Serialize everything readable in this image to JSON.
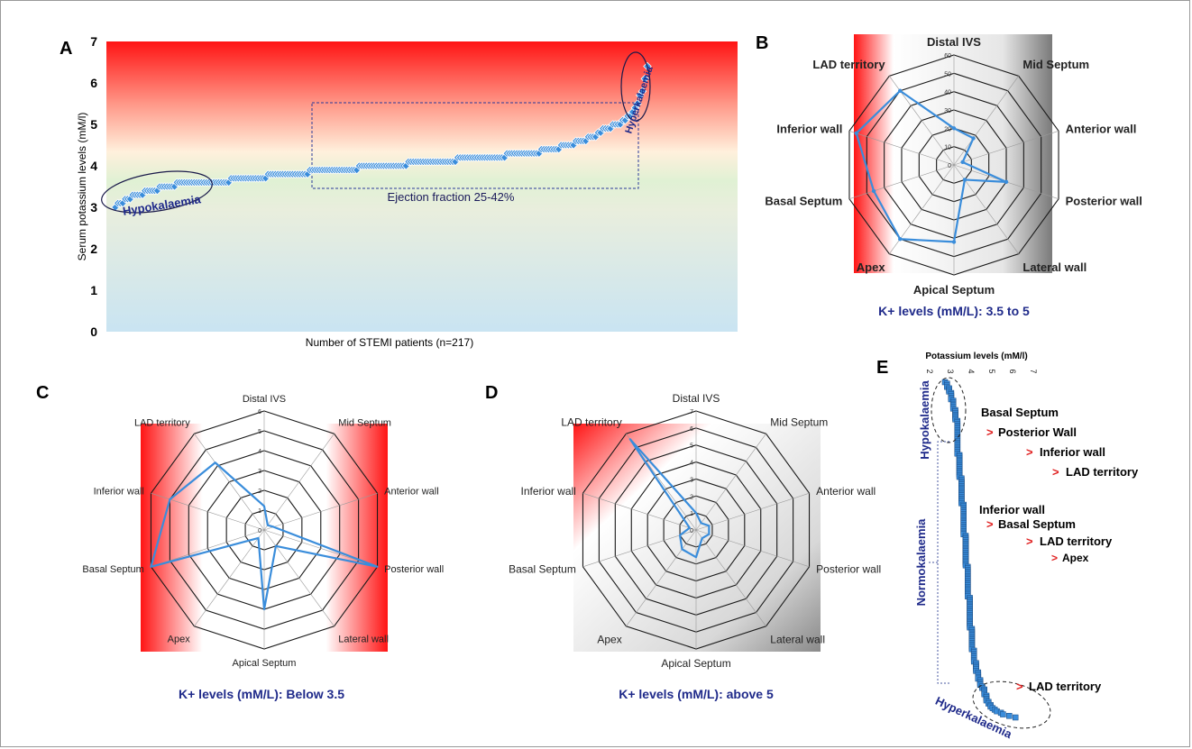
{
  "panels": {
    "A": "A",
    "B": "B",
    "C": "C",
    "D": "D",
    "E": "E"
  },
  "colors": {
    "series": "#3a8ddb",
    "caption": "#1f2a8a",
    "arrow": "#e02020",
    "hot": "#ff1a1a"
  },
  "chart_data": [
    {
      "id": "A",
      "type": "scatter",
      "ylabel": "Serum potassium  levels (mM/l)",
      "xlabel": "Number of STEMI patients (n=217)",
      "ylim": [
        0,
        7
      ],
      "yticks": [
        "0",
        "1",
        "2",
        "3",
        "4",
        "5",
        "6",
        "7"
      ],
      "n": 217,
      "sorted_profile": {
        "x": [
          1,
          3,
          6,
          10,
          15,
          22,
          30,
          40,
          55,
          70,
          90,
          110,
          130,
          150,
          170,
          185,
          195,
          200,
          205,
          208,
          211,
          213,
          215,
          217
        ],
        "y": [
          3.0,
          3.1,
          3.2,
          3.3,
          3.4,
          3.5,
          3.6,
          3.6,
          3.7,
          3.8,
          3.9,
          4.0,
          4.1,
          4.2,
          4.3,
          4.5,
          4.7,
          4.9,
          5.0,
          5.1,
          5.3,
          5.5,
          5.8,
          6.4
        ]
      },
      "annotations": {
        "hypo": "Hypokalaemia",
        "hyper": "Hyperkalaemia",
        "ef": "Ejection fraction 25-42%"
      }
    },
    {
      "id": "B",
      "type": "radar",
      "axes": [
        "Distal IVS",
        "Mid Septum",
        "Anterior wall",
        "Posterior wall",
        "Lateral wall",
        "Apical Septum",
        "Apex",
        "Basal Septum",
        "Inferior wall",
        "LAD territory"
      ],
      "rmax": 60,
      "ring_labels": [
        "0",
        "10",
        "20",
        "30",
        "40",
        "50",
        "60"
      ],
      "values": [
        20,
        18,
        5,
        30,
        10,
        42,
        50,
        46,
        56,
        50
      ],
      "caption": "K+ levels (mM/L): 3.5 to 5"
    },
    {
      "id": "C",
      "type": "radar",
      "axes": [
        "Distal IVS",
        "Mid Septum",
        "Anterior wall",
        "Posterior wall",
        "Lateral wall",
        "Apical Septum",
        "Apex",
        "Basal Septum",
        "Inferior wall",
        "LAD territory"
      ],
      "rmax": 6,
      "ring_labels": [
        "0",
        "1",
        "2",
        "3",
        "4",
        "5",
        "6"
      ],
      "values": [
        1.2,
        0.3,
        0.5,
        6.0,
        1.0,
        4.0,
        0.5,
        6.0,
        5.0,
        4.2
      ],
      "caption": "K+ levels (mM/L): Below 3.5"
    },
    {
      "id": "D",
      "type": "radar",
      "axes": [
        "Distal IVS",
        "Mid Septum",
        "Anterior wall",
        "Posterior wall",
        "Lateral wall",
        "Apical Septum",
        "Apex",
        "Basal Septum",
        "Inferior wall",
        "LAD territory"
      ],
      "rmax": 7,
      "ring_labels": [
        "0",
        "1",
        "2",
        "3",
        "4",
        "5",
        "6",
        "7"
      ],
      "values": [
        1.0,
        0.5,
        0.8,
        0.8,
        0.6,
        1.6,
        1.4,
        1.0,
        0.4,
        6.6
      ],
      "caption": "K+ levels (mM/L):  above 5"
    },
    {
      "id": "E",
      "type": "scatter",
      "title": "Potassium levels (mM/l)",
      "ticks": [
        "2",
        "3",
        "4",
        "5",
        "6",
        "7"
      ],
      "xlim": [
        2,
        7
      ],
      "group_labels": [
        "Hypokalaemia",
        "Normokalaemia",
        "Hyperkalaemia"
      ],
      "annotations": {
        "hypo": [
          "Basal Septum",
          "Posterior Wall",
          "Inferior wall",
          "LAD territory"
        ],
        "normo": [
          "Inferior wall",
          "Basal Septum",
          "LAD territory",
          "Apex"
        ],
        "hyper": [
          "LAD territory"
        ]
      },
      "arrow_glyph": ">"
    }
  ]
}
